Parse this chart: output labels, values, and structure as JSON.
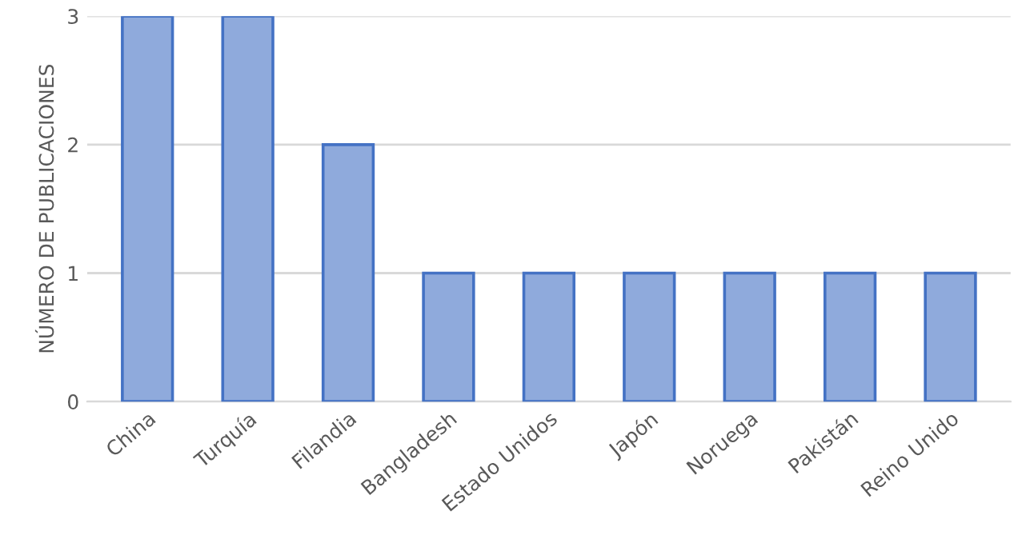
{
  "chart_data": {
    "type": "bar",
    "ylabel": "NÚMERO DE PUBLICACIONES",
    "categories": [
      "China",
      "Turquía",
      "Filandia",
      "Bangladesh",
      "Estado Unidos",
      "Japón",
      "Noruega",
      "Pakistán",
      "Reino Unido"
    ],
    "values": [
      3,
      3,
      2,
      1,
      1,
      1,
      1,
      1,
      1
    ],
    "color": "#8faadc",
    "ylim": [
      0,
      3
    ],
    "yticks": [
      0,
      1,
      2,
      3
    ],
    "grid": "y"
  }
}
